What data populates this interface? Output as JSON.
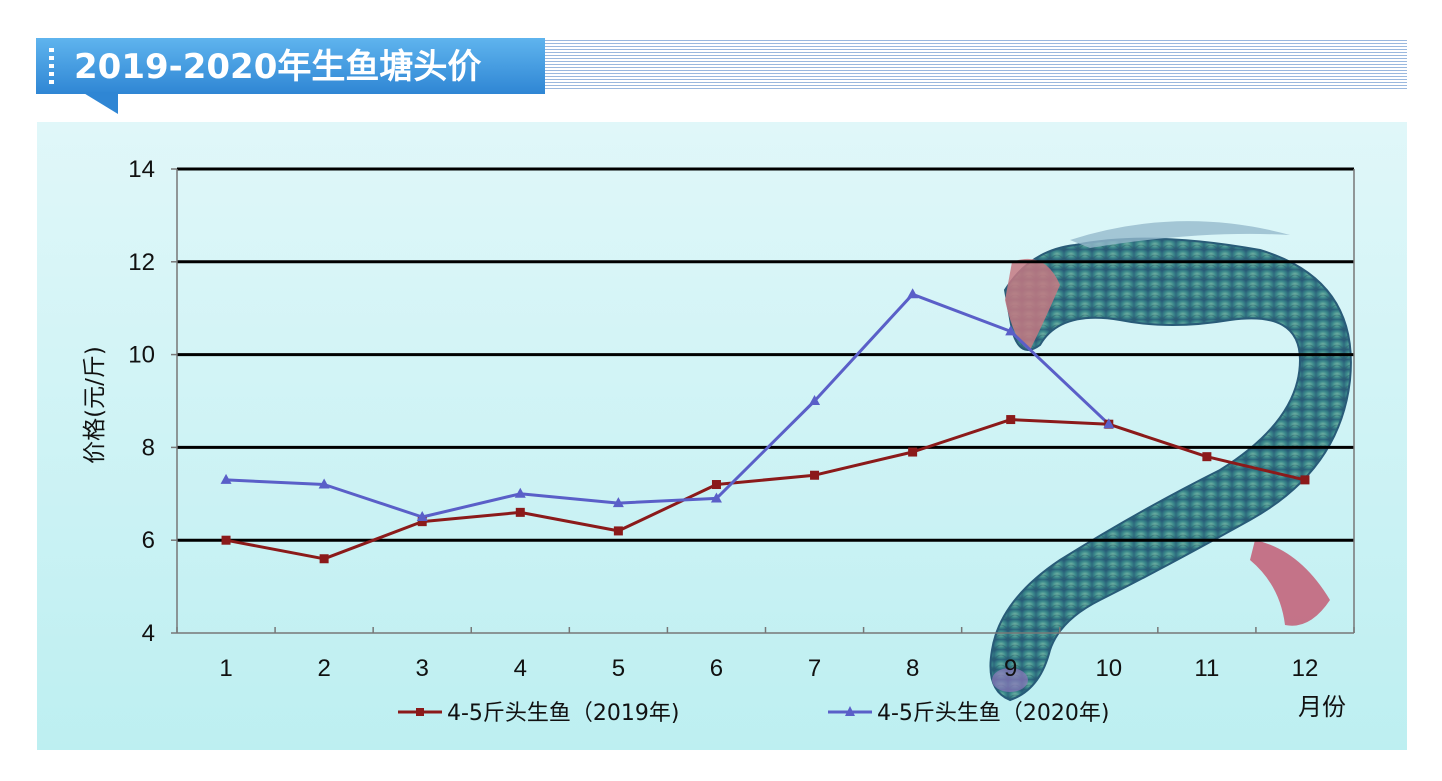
{
  "header": {
    "title": "2019-2020年生鱼塘头价"
  },
  "colors": {
    "banner": "#3a96dc",
    "panel": "#c9f2f4",
    "series_2019": "#8b1a1a",
    "series_2020": "#5a5fc8",
    "gridline": "#000000"
  },
  "decor": {
    "fish": "snakehead-fish-image"
  },
  "chart_data": {
    "type": "line",
    "title": "2019-2020年生鱼塘头价",
    "ylabel": "价格(元/斤)",
    "xlabel_unit": "月份",
    "ylim": [
      4,
      14
    ],
    "yticks": [
      "4",
      "6",
      "8",
      "10",
      "12",
      "14"
    ],
    "categories": [
      "1",
      "2",
      "3",
      "4",
      "5",
      "6",
      "7",
      "8",
      "9",
      "10",
      "11",
      "12"
    ],
    "grid": "horizontal",
    "legend_position": "bottom",
    "series": [
      {
        "name": "4-5斤头生鱼（2019年)",
        "marker": "square",
        "values": [
          6.0,
          5.6,
          6.4,
          6.6,
          6.2,
          7.2,
          7.4,
          7.9,
          8.6,
          8.5,
          7.8,
          7.3
        ]
      },
      {
        "name": "4-5斤头生鱼（2020年)",
        "marker": "triangle",
        "values": [
          7.3,
          7.2,
          6.5,
          7.0,
          6.8,
          6.9,
          9.0,
          11.3,
          10.5,
          8.5,
          null,
          null
        ]
      }
    ]
  }
}
